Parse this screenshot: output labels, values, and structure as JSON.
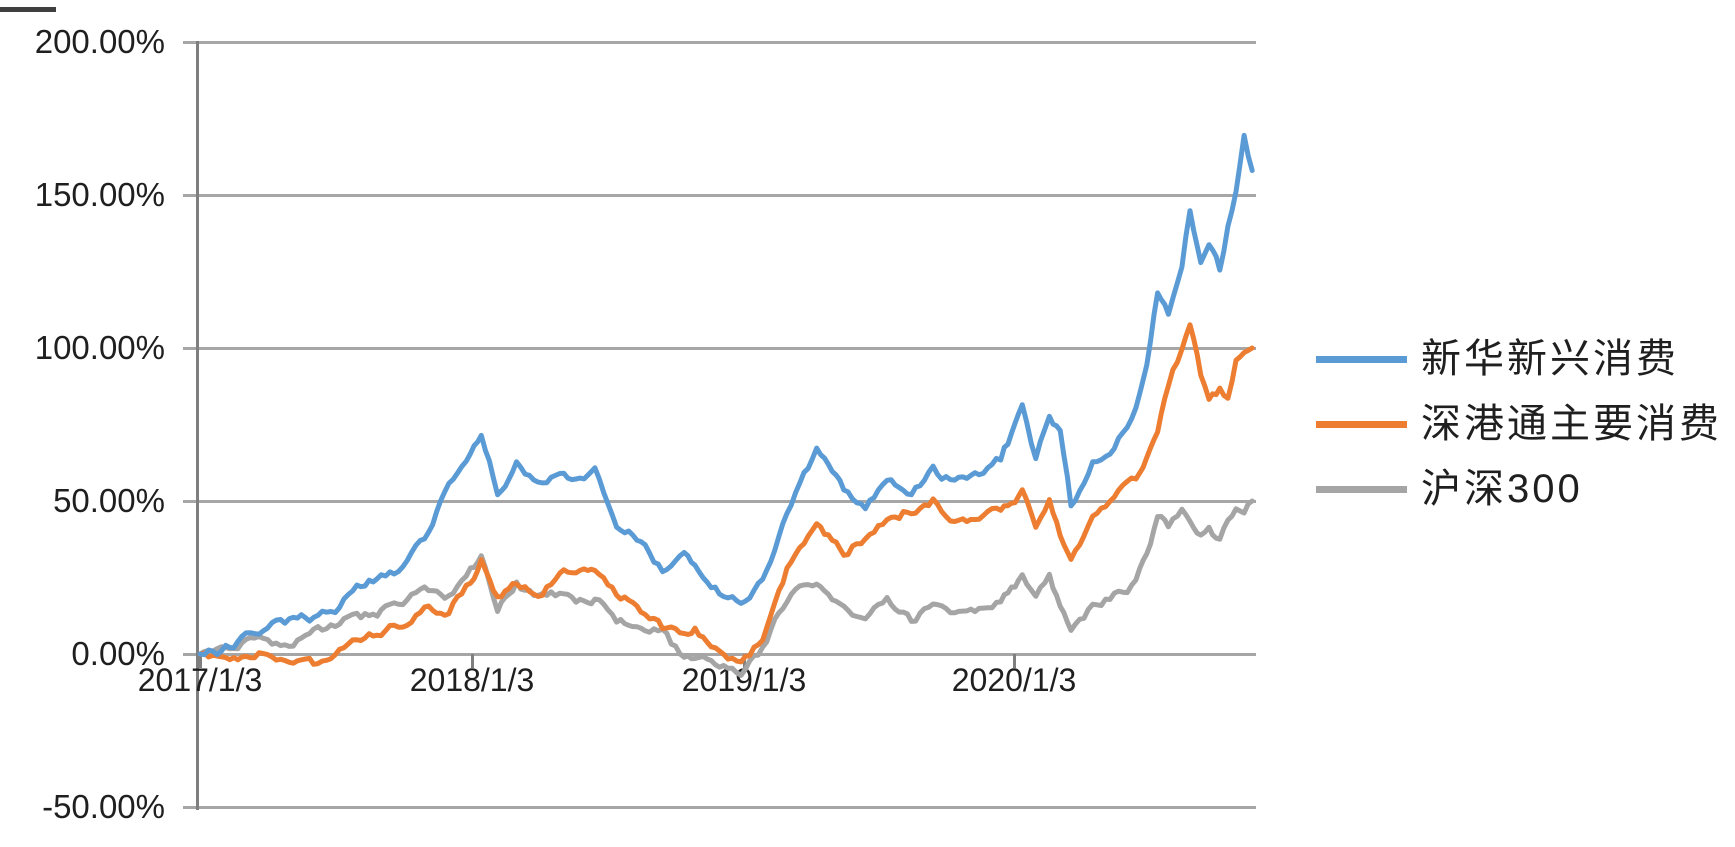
{
  "colors": {
    "grid": "#a6a6a6",
    "axis": "#7f7f7f",
    "text": "#1f1f1f"
  },
  "chart_data": {
    "type": "line",
    "title": "",
    "xlabel": "",
    "ylabel": "",
    "grid": "horizontal",
    "legend_position": "right",
    "ylim": [
      -50,
      200
    ],
    "y_tick_interval": 50,
    "y_ticks": [
      "200.00%",
      "150.00%",
      "100.00%",
      "50.00%",
      "0.00%",
      "-50.00%"
    ],
    "y_tick_values": [
      200,
      150,
      100,
      50,
      0,
      -50
    ],
    "x_tick_labels": [
      "2017/1/3",
      "2018/1/3",
      "2019/1/3",
      "2020/1/3"
    ],
    "x_tick_positions": [
      0,
      1,
      2,
      3
    ],
    "x_unit": "years since 2017/1/3",
    "xlim": [
      0,
      3.9
    ],
    "x": [
      0,
      0.08,
      0.17,
      0.25,
      0.33,
      0.42,
      0.5,
      0.58,
      0.67,
      0.75,
      0.83,
      0.92,
      1,
      1.04,
      1.1,
      1.17,
      1.25,
      1.33,
      1.42,
      1.46,
      1.54,
      1.63,
      1.71,
      1.79,
      1.83,
      1.92,
      2,
      2.08,
      2.17,
      2.28,
      2.38,
      2.46,
      2.54,
      2.63,
      2.71,
      2.79,
      2.88,
      2.96,
      3,
      3.04,
      3.09,
      3.14,
      3.18,
      3.22,
      3.3,
      3.38,
      3.46,
      3.5,
      3.54,
      3.58,
      3.63,
      3.66,
      3.7,
      3.73,
      3.77,
      3.8,
      3.83,
      3.86,
      3.89
    ],
    "series": [
      {
        "name": "新华新兴消费",
        "color": "#5b9bd5",
        "unit": "%",
        "values": [
          0,
          1,
          6,
          9,
          11,
          12,
          14,
          22,
          26,
          28,
          38,
          55,
          65,
          73,
          52,
          62,
          56,
          59,
          57,
          62,
          43,
          37,
          27,
          32,
          28,
          20,
          16,
          24,
          45,
          67,
          54,
          48,
          57,
          52,
          60,
          56,
          58,
          64,
          72,
          80,
          64,
          78,
          72,
          49,
          62,
          68,
          80,
          95,
          118,
          112,
          126,
          145,
          128,
          134,
          126,
          139,
          150,
          170,
          158
        ]
      },
      {
        "name": "深港通主要消费",
        "color": "#ed7d31",
        "unit": "%",
        "values": [
          0,
          -2,
          0,
          1,
          -2,
          -3,
          1,
          4,
          7,
          10,
          15,
          14,
          24,
          30,
          18,
          23,
          18,
          26,
          28,
          26,
          20,
          14,
          9,
          6,
          8,
          1,
          -4,
          6,
          28,
          43,
          33,
          38,
          44,
          47,
          50,
          43,
          45,
          48,
          50,
          53,
          42,
          51,
          38,
          31,
          45,
          52,
          58,
          64,
          72,
          88,
          100,
          109,
          92,
          82,
          87,
          83,
          95,
          97,
          100
        ]
      },
      {
        "name": "沪深300",
        "color": "#a5a5a5",
        "unit": "%",
        "values": [
          0,
          2,
          4,
          5,
          2,
          7,
          10,
          12,
          14,
          16,
          22,
          19,
          27,
          32,
          15,
          23,
          18,
          20,
          17,
          18,
          11,
          7,
          8,
          -2,
          0,
          -4,
          -7,
          2,
          18,
          24,
          14,
          12,
          17,
          11,
          16,
          13,
          14,
          18,
          21,
          25,
          20,
          26,
          15,
          7,
          16,
          19,
          23,
          32,
          44,
          42,
          46,
          44,
          38,
          40,
          37,
          43,
          47,
          45,
          50
        ]
      }
    ]
  }
}
